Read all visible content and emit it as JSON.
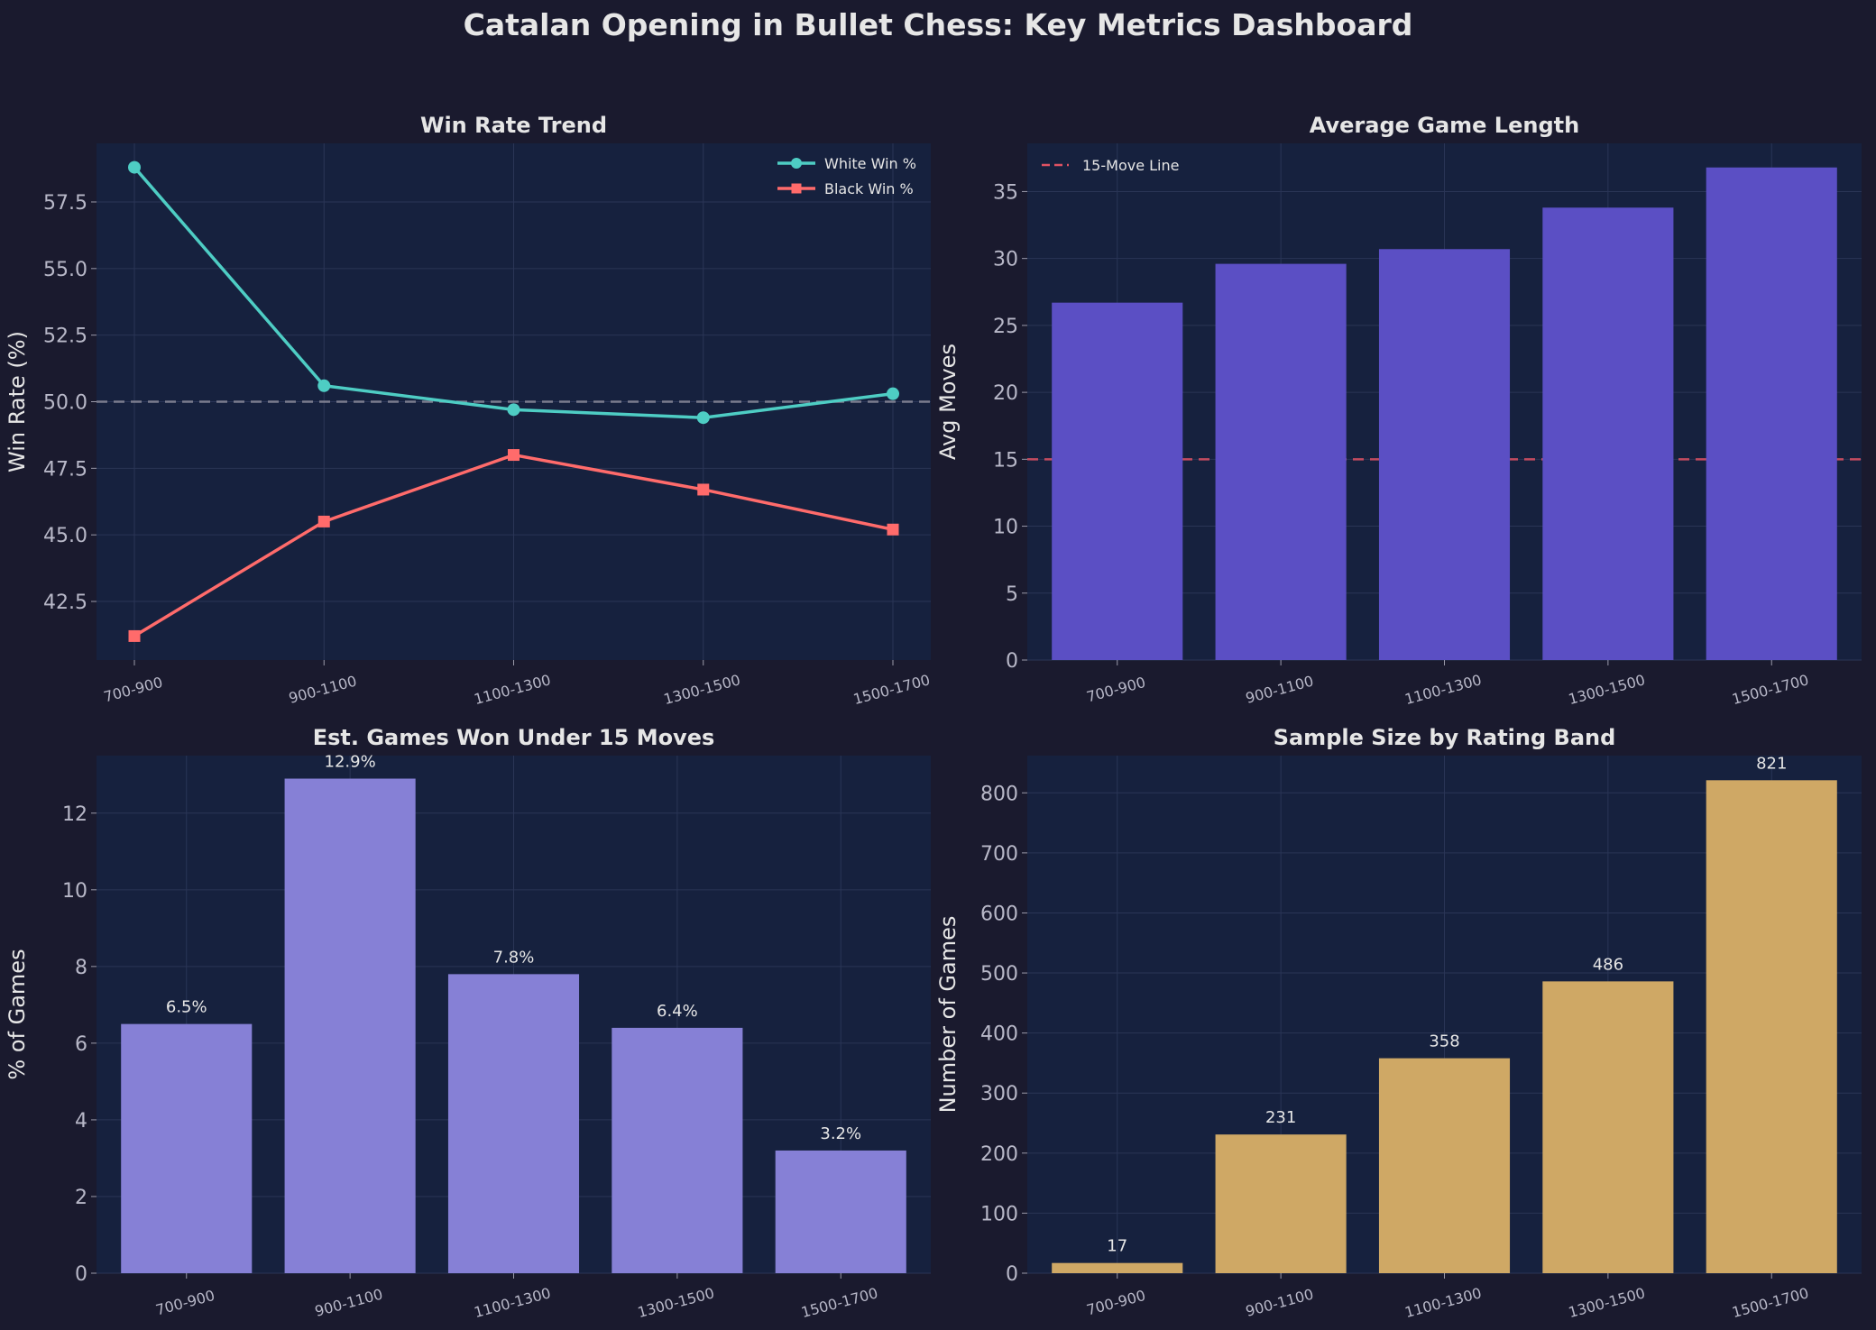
{
  "page": {
    "title": "Catalan Opening in Bullet Chess: Key Metrics Dashboard"
  },
  "colors": {
    "background": "#1a1a2e",
    "panel": "#16213e",
    "text": "#e6e6e6",
    "tick": "#b8b8c8",
    "white_line": "#4ecdc4",
    "black_line": "#ff6b6b",
    "game_length_bars": "#5b4fc4",
    "early_win_bars": "#8680d6",
    "sample_bars": "#cfa865",
    "reference_line": "#e05263"
  },
  "chart_data": [
    {
      "id": "win-rate",
      "type": "line",
      "title": "Win Rate Trend",
      "xlabel": "",
      "ylabel": "Win Rate (%)",
      "categories": [
        "700-900",
        "900-1100",
        "1100-1300",
        "1300-1500",
        "1500-1700"
      ],
      "series": [
        {
          "name": "White Win %",
          "values": [
            58.8,
            50.6,
            49.7,
            49.4,
            50.3
          ],
          "color": "#4ecdc4",
          "marker": "circle"
        },
        {
          "name": "Black Win %",
          "values": [
            41.2,
            45.5,
            48.0,
            46.7,
            45.2
          ],
          "color": "#ff6b6b",
          "marker": "square"
        }
      ],
      "ylim": [
        40.3,
        59.7
      ],
      "yticks": [
        42.5,
        45.0,
        47.5,
        50.0,
        52.5,
        55.0,
        57.5
      ],
      "ytick_labels": [
        "42.5",
        "45.0",
        "47.5",
        "50.0",
        "52.5",
        "55.0",
        "57.5"
      ],
      "reference_line": {
        "value": 50,
        "color": "#8a8a9a",
        "style": "dashed"
      },
      "legend": "top-right",
      "grid": true
    },
    {
      "id": "game-length",
      "type": "bar",
      "title": "Average Game Length",
      "xlabel": "",
      "ylabel": "Avg Moves",
      "categories": [
        "700-900",
        "900-1100",
        "1100-1300",
        "1300-1500",
        "1500-1700"
      ],
      "values": [
        26.7,
        29.6,
        30.7,
        33.8,
        36.8
      ],
      "color": "#5b4fc4",
      "ylim": [
        0,
        38.6
      ],
      "yticks": [
        0,
        5,
        10,
        15,
        20,
        25,
        30,
        35
      ],
      "ytick_labels": [
        "0",
        "5",
        "10",
        "15",
        "20",
        "25",
        "30",
        "35"
      ],
      "reference_line": {
        "value": 15,
        "name": "15-Move Line",
        "color": "#e05263",
        "style": "dashed"
      },
      "legend": "top-left",
      "grid": true
    },
    {
      "id": "early-wins",
      "type": "bar",
      "title": "Est. Games Won Under 15 Moves",
      "xlabel": "",
      "ylabel": "% of Games",
      "categories": [
        "700-900",
        "900-1100",
        "1100-1300",
        "1300-1500",
        "1500-1700"
      ],
      "values": [
        6.5,
        12.9,
        7.8,
        6.4,
        3.2
      ],
      "data_labels": [
        "6.5%",
        "12.9%",
        "7.8%",
        "6.4%",
        "3.2%"
      ],
      "color": "#8680d6",
      "ylim": [
        0,
        13.5
      ],
      "yticks": [
        0,
        2,
        4,
        6,
        8,
        10,
        12
      ],
      "ytick_labels": [
        "0",
        "2",
        "4",
        "6",
        "8",
        "10",
        "12"
      ],
      "grid": true
    },
    {
      "id": "sample-size",
      "type": "bar",
      "title": "Sample Size by Rating Band",
      "xlabel": "",
      "ylabel": "Number of Games",
      "categories": [
        "700-900",
        "900-1100",
        "1100-1300",
        "1300-1500",
        "1500-1700"
      ],
      "values": [
        17,
        231,
        358,
        486,
        821
      ],
      "data_labels": [
        "17",
        "231",
        "358",
        "486",
        "821"
      ],
      "color": "#cfa865",
      "ylim": [
        0,
        862
      ],
      "yticks": [
        0,
        100,
        200,
        300,
        400,
        500,
        600,
        700,
        800
      ],
      "ytick_labels": [
        "0",
        "100",
        "200",
        "300",
        "400",
        "500",
        "600",
        "700",
        "800"
      ],
      "grid": true
    }
  ]
}
